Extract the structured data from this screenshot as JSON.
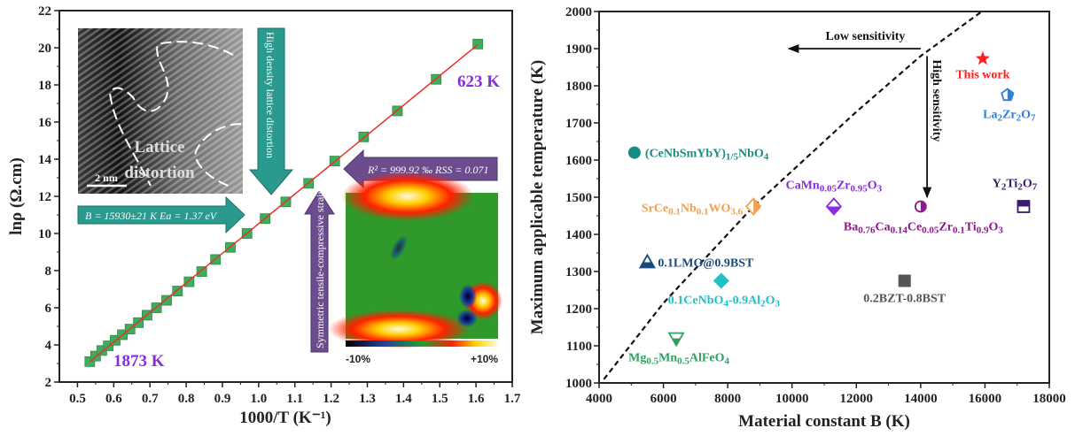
{
  "chart_data": [
    {
      "type": "scatter",
      "xlabel": "1000/T (K⁻¹)",
      "ylabel": "lnρ (Ω.cm)",
      "xlim": [
        0.45,
        1.7
      ],
      "ylim": [
        2,
        22
      ],
      "xticks": [
        "0.5",
        "0.6",
        "0.7",
        "0.8",
        "0.9",
        "1.0",
        "1.1",
        "1.2",
        "1.3",
        "1.4",
        "1.5",
        "1.6",
        "1.7"
      ],
      "yticks": [
        "2",
        "4",
        "6",
        "8",
        "10",
        "12",
        "14",
        "16",
        "18",
        "20",
        "22"
      ],
      "grid": false,
      "marker_color": "#3fae5c",
      "fit_color": "#e8302a",
      "x": [
        0.534,
        0.55,
        0.567,
        0.585,
        0.604,
        0.624,
        0.645,
        0.668,
        0.692,
        0.718,
        0.746,
        0.776,
        0.808,
        0.843,
        0.881,
        0.922,
        0.968,
        1.018,
        1.075,
        1.138,
        1.21,
        1.29,
        1.383,
        1.49,
        1.605
      ],
      "y": [
        3.1,
        3.4,
        3.7,
        3.95,
        4.25,
        4.55,
        4.85,
        5.2,
        5.6,
        6.0,
        6.4,
        6.9,
        7.4,
        7.95,
        8.6,
        9.25,
        10.0,
        10.8,
        11.7,
        12.7,
        13.9,
        15.2,
        16.6,
        18.3,
        20.2
      ],
      "fit_line": {
        "x": [
          0.534,
          1.605
        ],
        "y": [
          3.1,
          20.17
        ]
      },
      "annotations": {
        "high_T": "1873 K",
        "low_T": "623 K",
        "fit_params": "B = 15930±21 K  Ea = 1.37 eV",
        "fit_quality": "R² = 999.92 ‰  RSS = 0.071",
        "distortion_arrow": "High density lattice distortion",
        "strain_arrow": "Symmetric tensile-compressive strains",
        "tem_label": [
          "Lattice",
          "distortion"
        ],
        "scale_bar": "2 nm",
        "colorbar_min": "-10%",
        "colorbar_max": "+10%"
      },
      "annotation_color": "#8a2be2",
      "arrow_colors": {
        "teal": "#2a9a8e",
        "purple": "#6b4c8c"
      }
    },
    {
      "type": "scatter",
      "xlabel": "Material constant B (K)",
      "ylabel": "Maximum applicable temperature (K)",
      "xlim": [
        4000,
        18000
      ],
      "ylim": [
        1000,
        2000
      ],
      "xticks": [
        "4000",
        "6000",
        "8000",
        "10000",
        "12000",
        "14000",
        "16000",
        "18000"
      ],
      "yticks": [
        "1000",
        "1100",
        "1200",
        "1300",
        "1400",
        "1500",
        "1600",
        "1700",
        "1800",
        "1900",
        "2000"
      ],
      "grid": false,
      "points": [
        {
          "label": "This work",
          "B": 15930,
          "T": 1873,
          "marker": "star",
          "color": "#ff2020"
        },
        {
          "label": "La_{2}Zr_{2}O_{7}",
          "B": 16700,
          "T": 1775,
          "marker": "pentagon-half",
          "color": "#2f7fe0"
        },
        {
          "label": "(CeNbSmYbY)_{1/5}NbO_{4}",
          "B": 5100,
          "T": 1620,
          "marker": "circle",
          "color": "#1a8a84"
        },
        {
          "label": "SrCe_{0.1}Nb_{0.1}WO_{3.6}",
          "B": 8800,
          "T": 1475,
          "marker": "diamond-half",
          "color": "#f2a050"
        },
        {
          "label": "CaMn_{0.05}Zr_{0.95}O_{3}",
          "B": 11300,
          "T": 1475,
          "marker": "diamond-half",
          "color": "#8a2be2"
        },
        {
          "label": "Ba_{0.76}Ca_{0.14}Ce_{0.05}Zr_{0.1}Ti_{0.9}O_{3}",
          "B": 14000,
          "T": 1475,
          "marker": "circle-half",
          "color": "#8b1a8b"
        },
        {
          "label": "Y_{2}Ti_{2}O_{7}",
          "B": 17200,
          "T": 1475,
          "marker": "square-half",
          "color": "#3a1a6e"
        },
        {
          "label": "0.1LMO@0.9BST",
          "B": 5500,
          "T": 1325,
          "marker": "triangle-half",
          "color": "#1a4a7a"
        },
        {
          "label": "0.1CeNbO_{4}-0.9Al_{2}O_{3}",
          "B": 7800,
          "T": 1275,
          "marker": "diamond",
          "color": "#20c0c8"
        },
        {
          "label": "0.2BZT-0.8BST",
          "B": 13500,
          "T": 1275,
          "marker": "square",
          "color": "#555555"
        },
        {
          "label": "Mg_{0.5}Mn_{0.5}AlFeO_{4}",
          "B": 6400,
          "T": 1120,
          "marker": "triangle-down-half",
          "color": "#2ea060"
        }
      ],
      "boundary_line": {
        "B": [
          4150,
          6000,
          8800,
          12000,
          14000,
          15900
        ],
        "T": [
          1010,
          1215,
          1475,
          1730,
          1880,
          2000
        ],
        "style": "dashed"
      },
      "arrows": {
        "low": {
          "label": "Low sensitivity",
          "from": [
            14000,
            1900
          ],
          "to": [
            9900,
            1900
          ]
        },
        "high": {
          "label": "High sensitivity",
          "from": [
            14200,
            1880
          ],
          "to": [
            14200,
            1500
          ]
        }
      }
    }
  ]
}
